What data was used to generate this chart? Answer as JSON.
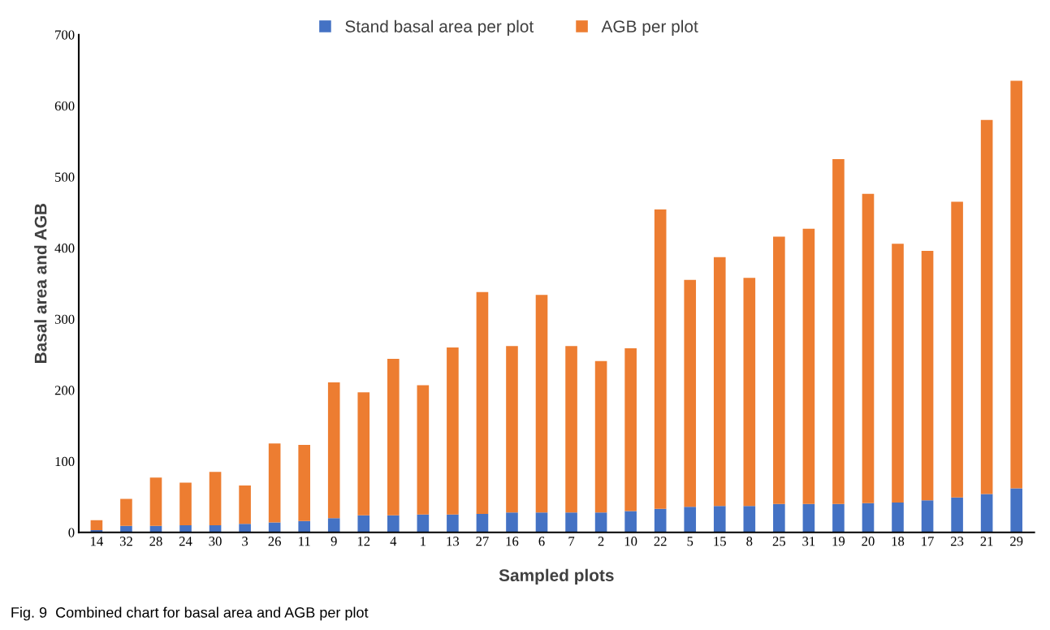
{
  "chart_data": {
    "type": "bar",
    "stacked": true,
    "xlabel": "Sampled plots",
    "ylabel": "Basal area and AGB",
    "categories": [
      "14",
      "32",
      "28",
      "24",
      "30",
      "3",
      "26",
      "11",
      "9",
      "12",
      "4",
      "1",
      "13",
      "27",
      "16",
      "6",
      "7",
      "2",
      "10",
      "22",
      "5",
      "15",
      "8",
      "25",
      "31",
      "19",
      "20",
      "18",
      "17",
      "23",
      "21",
      "29"
    ],
    "series": [
      {
        "name": "Stand basal area per plot",
        "color": "#4472c4",
        "values": [
          3,
          9,
          9,
          10,
          10,
          12,
          14,
          16,
          20,
          24,
          24,
          25,
          25,
          26,
          28,
          28,
          28,
          28,
          30,
          33,
          36,
          37,
          37,
          40,
          40,
          40,
          41,
          42,
          45,
          49,
          54,
          62
        ]
      },
      {
        "name": "AGB per plot",
        "color": "#ed7d31",
        "values": [
          14,
          38,
          68,
          60,
          75,
          54,
          111,
          107,
          191,
          173,
          220,
          182,
          235,
          312,
          234,
          306,
          234,
          213,
          229,
          421,
          319,
          350,
          321,
          376,
          387,
          485,
          435,
          364,
          351,
          416,
          526,
          573
        ]
      }
    ],
    "ylim": [
      0,
      700
    ],
    "yticks": [
      0,
      100,
      200,
      300,
      400,
      500,
      600,
      700
    ],
    "grid": false,
    "legend": "top",
    "annotations": [
      "Fig. 9  Combined chart for basal area and AGB per plot"
    ]
  }
}
